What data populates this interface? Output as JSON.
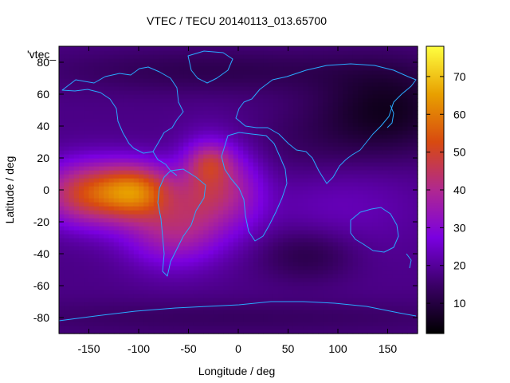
{
  "chart_data": {
    "type": "heatmap",
    "title": "VTEC / TECU 20140113_013.65700",
    "xlabel": "Longitude / deg",
    "ylabel": "Latitude / deg",
    "legend_key": "'vtec_",
    "xlim": [
      -180,
      180
    ],
    "ylim": [
      -90,
      90
    ],
    "xticks": [
      -150,
      -100,
      -50,
      0,
      50,
      100,
      150
    ],
    "yticks": [
      -80,
      -60,
      -40,
      -20,
      0,
      20,
      40,
      60,
      80
    ],
    "xtick_labels": [
      "-150",
      "-100",
      "-50",
      "0",
      "50",
      "100",
      "150"
    ],
    "ytick_labels": [
      "-80",
      "-60",
      "-40",
      "-20",
      "0",
      "20",
      "40",
      "60",
      "80"
    ],
    "colorbar": {
      "range": [
        2,
        78
      ],
      "ticks": [
        10,
        20,
        30,
        40,
        50,
        60,
        70
      ],
      "tick_labels": [
        "10",
        "20",
        "30",
        "40",
        "50",
        "60",
        "70"
      ],
      "colormap": [
        "#000000",
        "#3a0066",
        "#7a00e0",
        "#b02890",
        "#d84a10",
        "#e8a000",
        "#ffff40"
      ]
    },
    "grid": {
      "lon_step": 5,
      "lat_step": 2.5
    },
    "background_vtec": 18,
    "blobs": [
      {
        "lon": -150,
        "lat": -2,
        "sig_lon": 35,
        "sig_lat": 14,
        "amp": 32
      },
      {
        "lon": -100,
        "lat": 0,
        "sig_lon": 26,
        "sig_lat": 12,
        "amp": 30
      },
      {
        "lon": -65,
        "lat": -25,
        "sig_lon": 35,
        "sig_lat": 16,
        "amp": 20
      },
      {
        "lon": -30,
        "lat": 5,
        "sig_lon": 22,
        "sig_lat": 18,
        "amp": 22
      },
      {
        "lon": -28,
        "lat": 18,
        "sig_lon": 15,
        "sig_lat": 8,
        "amp": 12
      },
      {
        "lon": 5,
        "lat": 0,
        "sig_lon": 20,
        "sig_lat": 18,
        "amp": 10
      },
      {
        "lon": 100,
        "lat": -5,
        "sig_lon": 60,
        "sig_lat": 25,
        "amp": 6
      },
      {
        "lon": 150,
        "lat": 50,
        "sig_lon": 50,
        "sig_lat": 20,
        "amp": -12
      },
      {
        "lon": 75,
        "lat": 25,
        "sig_lon": 55,
        "sig_lat": 18,
        "amp": -5
      },
      {
        "lon": 70,
        "lat": -40,
        "sig_lon": 35,
        "sig_lat": 12,
        "amp": -8
      },
      {
        "lon": -20,
        "lat": 75,
        "sig_lon": 120,
        "sig_lat": 10,
        "amp": -6
      },
      {
        "lon": 0,
        "lat": -80,
        "sig_lon": 200,
        "sig_lat": 8,
        "amp": -4
      }
    ]
  }
}
